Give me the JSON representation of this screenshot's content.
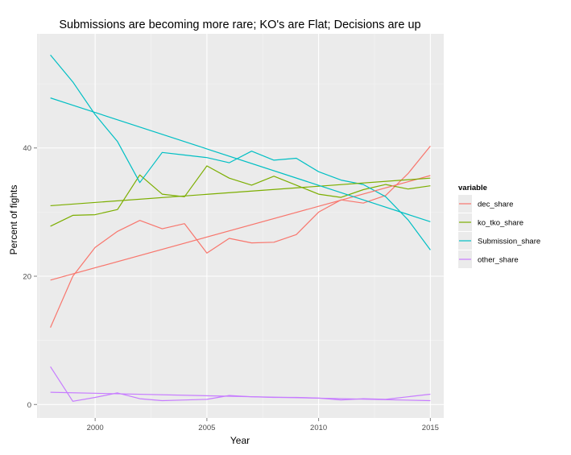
{
  "chart_data": {
    "type": "line",
    "title": "Submissions are becoming more rare; KO's are Flat; Decisions are up",
    "xlabel": "Year",
    "ylabel": "Percent of fights",
    "xlim": [
      1997.4,
      2015.6
    ],
    "ylim": [
      -2.1,
      57.8
    ],
    "x_ticks": [
      2000,
      2005,
      2010,
      2015
    ],
    "y_ticks": [
      0,
      20,
      40
    ],
    "grid": true,
    "legend_title": "variable",
    "legend_position": "right",
    "x": [
      1998,
      1999,
      2000,
      2001,
      2002,
      2003,
      2004,
      2005,
      2006,
      2007,
      2008,
      2009,
      2010,
      2011,
      2012,
      2013,
      2014,
      2015
    ],
    "series": [
      {
        "name": "dec_share",
        "color": "#F8766D",
        "values": [
          12.0,
          20.0,
          24.5,
          27.0,
          28.7,
          27.4,
          28.2,
          23.6,
          25.9,
          25.2,
          25.3,
          26.5,
          30.0,
          31.9,
          31.4,
          32.6,
          36.0,
          40.3
        ],
        "trend": [
          19.4,
          35.7
        ]
      },
      {
        "name": "ko_tko_share",
        "color": "#7CAE00",
        "values": [
          27.8,
          29.5,
          29.6,
          30.4,
          35.8,
          32.8,
          32.4,
          37.2,
          35.3,
          34.2,
          35.6,
          34.2,
          32.8,
          32.3,
          33.5,
          34.3,
          33.6,
          34.1
        ],
        "trend": [
          31.0,
          35.3
        ]
      },
      {
        "name": "Submission_share",
        "color": "#00BFC4",
        "values": [
          54.5,
          50.3,
          45.2,
          41.0,
          34.6,
          39.3,
          38.9,
          38.5,
          37.7,
          39.5,
          38.1,
          38.4,
          36.3,
          35.0,
          34.3,
          32.4,
          28.8,
          24.1
        ],
        "trend": [
          47.8,
          28.5
        ]
      },
      {
        "name": "other_share",
        "color": "#C77CFF",
        "values": [
          5.9,
          0.5,
          1.1,
          1.8,
          0.9,
          0.6,
          0.7,
          0.8,
          1.4,
          1.2,
          1.1,
          1.1,
          1.0,
          0.7,
          0.9,
          0.8,
          1.2,
          1.6
        ],
        "trend": [
          1.9,
          0.6
        ]
      }
    ]
  }
}
